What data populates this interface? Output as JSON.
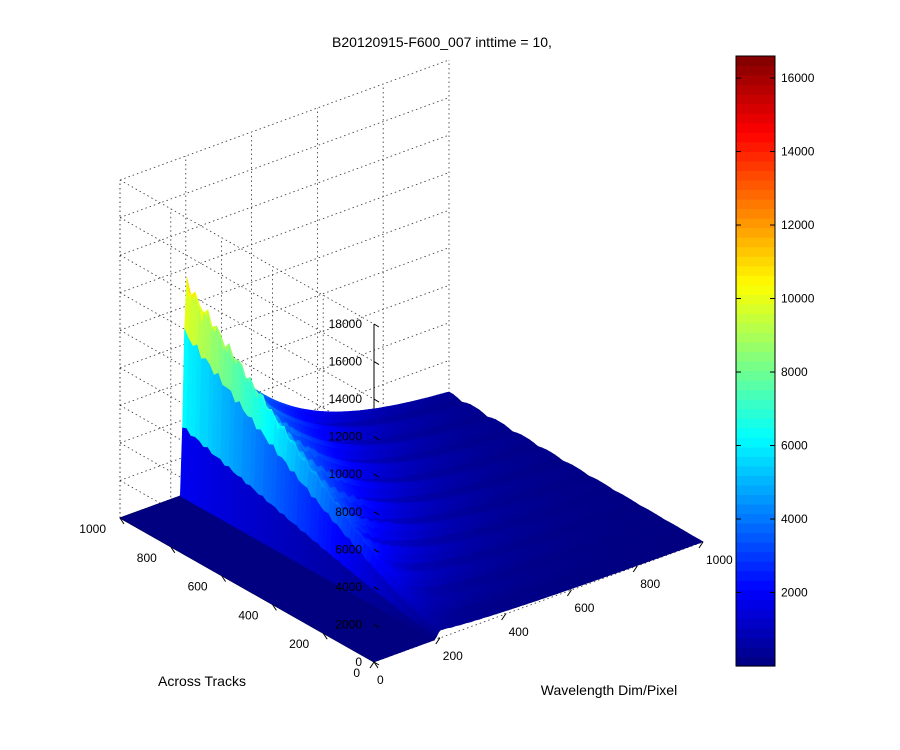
{
  "chart_data": {
    "type": "surface",
    "title": "B20120915-F600_007 inttime = 10,",
    "xlabel": "Wavelength Dim/Pixel",
    "ylabel": "Across Tracks",
    "zlabel": "",
    "xlim": [
      0,
      1000
    ],
    "ylim": [
      0,
      1000
    ],
    "zlim": [
      0,
      18000
    ],
    "x_ticks": [
      0,
      200,
      400,
      600,
      800,
      1000
    ],
    "y_ticks": [
      0,
      200,
      400,
      600,
      800,
      1000
    ],
    "z_ticks": [
      0,
      2000,
      4000,
      6000,
      8000,
      10000,
      12000,
      14000,
      16000,
      18000
    ],
    "grid": true,
    "colormap": "jet",
    "colorbar": {
      "range": [
        0,
        16600
      ],
      "ticks": [
        2000,
        4000,
        6000,
        8000,
        10000,
        12000,
        14000,
        16000
      ]
    },
    "surface_description_values": {
      "baseline": 0,
      "peak_region_x": [
        190,
        1000
      ],
      "peak_x": 200,
      "peak_value_at_y_max": 10600,
      "peak_value_at_y_min": 400,
      "ridge_count": 10
    }
  }
}
